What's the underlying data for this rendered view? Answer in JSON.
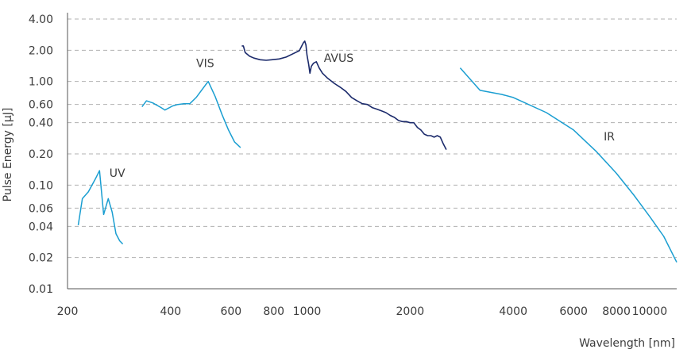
{
  "chart_data": {
    "type": "line",
    "title": "",
    "xlabel": "Wavelength [nm]",
    "ylabel": "Pulse Energy [µJ]",
    "xscale": "log",
    "yscale": "log",
    "xlim": [
      200,
      12000
    ],
    "ylim": [
      0.01,
      4.0
    ],
    "grid": "horizontal dashed",
    "x_ticks": [
      {
        "value": 200,
        "label": "200"
      },
      {
        "value": 400,
        "label": "400"
      },
      {
        "value": 600,
        "label": "600"
      },
      {
        "value": 800,
        "label": "800"
      },
      {
        "value": 1000,
        "label": "1000"
      },
      {
        "value": 2000,
        "label": "2000"
      },
      {
        "value": 4000,
        "label": "4000"
      },
      {
        "value": 6000,
        "label": "6000"
      },
      {
        "value": 8000,
        "label": "8000"
      },
      {
        "value": 10000,
        "label": "10000"
      }
    ],
    "y_ticks": [
      {
        "value": 4.0,
        "label": "4.00"
      },
      {
        "value": 2.0,
        "label": "2.00"
      },
      {
        "value": 1.0,
        "label": "1.00"
      },
      {
        "value": 0.6,
        "label": "0.60"
      },
      {
        "value": 0.4,
        "label": "0.40"
      },
      {
        "value": 0.2,
        "label": "0.20"
      },
      {
        "value": 0.1,
        "label": "0.10"
      },
      {
        "value": 0.06,
        "label": "0.06"
      },
      {
        "value": 0.04,
        "label": "0.04"
      },
      {
        "value": 0.02,
        "label": "0.02"
      },
      {
        "value": 0.01,
        "label": "0.01"
      }
    ],
    "series": [
      {
        "name": "UV",
        "color": "#1a9ed1",
        "label_at": [
          265,
          0.12
        ],
        "points": [
          [
            215,
            0.041
          ],
          [
            221,
            0.074
          ],
          [
            230,
            0.086
          ],
          [
            241,
            0.114
          ],
          [
            248,
            0.138
          ],
          [
            255,
            0.052
          ],
          [
            263,
            0.074
          ],
          [
            270,
            0.055
          ],
          [
            277,
            0.034
          ],
          [
            284,
            0.029
          ],
          [
            290,
            0.027
          ]
        ]
      },
      {
        "name": "VIS",
        "color": "#1a9ed1",
        "label_at": [
          475,
          1.38
        ],
        "points": [
          [
            330,
            0.57
          ],
          [
            340,
            0.65
          ],
          [
            355,
            0.62
          ],
          [
            375,
            0.56
          ],
          [
            385,
            0.53
          ],
          [
            405,
            0.58
          ],
          [
            420,
            0.6
          ],
          [
            437,
            0.61
          ],
          [
            455,
            0.61
          ],
          [
            475,
            0.7
          ],
          [
            505,
            0.92
          ],
          [
            515,
            1.0
          ],
          [
            540,
            0.71
          ],
          [
            565,
            0.48
          ],
          [
            590,
            0.34
          ],
          [
            615,
            0.26
          ],
          [
            640,
            0.23
          ]
        ]
      },
      {
        "name": "AVUS",
        "color": "#1b2a6b",
        "label_at": [
          1120,
          1.55
        ],
        "points": [
          [
            645,
            2.2
          ],
          [
            652,
            2.2
          ],
          [
            660,
            1.9
          ],
          [
            680,
            1.75
          ],
          [
            700,
            1.68
          ],
          [
            730,
            1.62
          ],
          [
            760,
            1.6
          ],
          [
            790,
            1.62
          ],
          [
            830,
            1.65
          ],
          [
            870,
            1.72
          ],
          [
            910,
            1.85
          ],
          [
            950,
            1.98
          ],
          [
            975,
            2.35
          ],
          [
            985,
            2.45
          ],
          [
            993,
            2.25
          ],
          [
            1000,
            1.8
          ],
          [
            1012,
            1.45
          ],
          [
            1020,
            1.2
          ],
          [
            1030,
            1.4
          ],
          [
            1045,
            1.5
          ],
          [
            1065,
            1.55
          ],
          [
            1085,
            1.35
          ],
          [
            1110,
            1.2
          ],
          [
            1150,
            1.07
          ],
          [
            1200,
            0.96
          ],
          [
            1250,
            0.88
          ],
          [
            1300,
            0.8
          ],
          [
            1350,
            0.7
          ],
          [
            1400,
            0.65
          ],
          [
            1450,
            0.61
          ],
          [
            1500,
            0.6
          ],
          [
            1550,
            0.56
          ],
          [
            1600,
            0.54
          ],
          [
            1650,
            0.52
          ],
          [
            1700,
            0.5
          ],
          [
            1750,
            0.47
          ],
          [
            1800,
            0.45
          ],
          [
            1850,
            0.42
          ],
          [
            1900,
            0.41
          ],
          [
            1950,
            0.41
          ],
          [
            2000,
            0.4
          ],
          [
            2050,
            0.4
          ],
          [
            2100,
            0.36
          ],
          [
            2150,
            0.34
          ],
          [
            2200,
            0.31
          ],
          [
            2250,
            0.3
          ],
          [
            2300,
            0.3
          ],
          [
            2350,
            0.29
          ],
          [
            2400,
            0.3
          ],
          [
            2450,
            0.29
          ],
          [
            2500,
            0.25
          ],
          [
            2550,
            0.22
          ]
        ]
      },
      {
        "name": "IR",
        "color": "#1a9ed1",
        "label_at": [
          7350,
          0.27
        ],
        "points": [
          [
            2800,
            1.35
          ],
          [
            3200,
            0.82
          ],
          [
            3700,
            0.75
          ],
          [
            4000,
            0.7
          ],
          [
            5000,
            0.5
          ],
          [
            6000,
            0.34
          ],
          [
            7000,
            0.21
          ],
          [
            8000,
            0.13
          ],
          [
            9000,
            0.08
          ],
          [
            10000,
            0.05
          ],
          [
            11000,
            0.032
          ],
          [
            12000,
            0.018
          ]
        ]
      }
    ]
  }
}
